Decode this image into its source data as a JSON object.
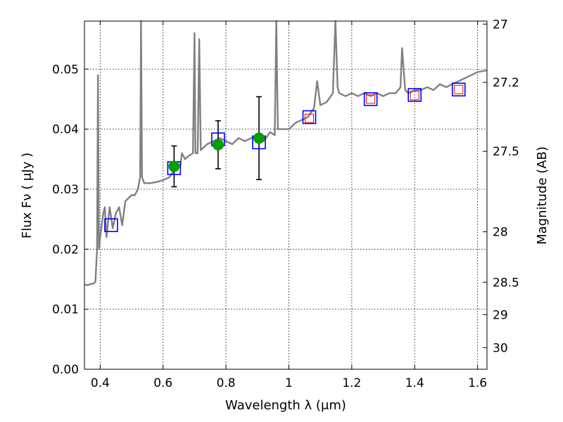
{
  "chart_data": {
    "type": "line",
    "title": "",
    "xlabel": "Wavelength  λ (μm)",
    "ylabel": "Flux  Fν  ( μJy )",
    "y2label": "Magnitude (AB)",
    "xlim": [
      0.35,
      1.63
    ],
    "ylim": [
      0.0,
      0.058
    ],
    "grid": true,
    "x_ticks": [
      0.4,
      0.6,
      0.8,
      1.0,
      1.2,
      1.4,
      1.6
    ],
    "x_tick_labels": [
      "0.4",
      "0.6",
      "0.8",
      "1",
      "1.2",
      "1.4",
      "1.6"
    ],
    "y_ticks": [
      0.0,
      0.01,
      0.02,
      0.03,
      0.04,
      0.05
    ],
    "y_tick_labels": [
      "0.00",
      "0.01",
      "0.02",
      "0.03",
      "0.04",
      "0.05"
    ],
    "y2_ticks": [
      {
        "label": "27",
        "flux": 0.0575
      },
      {
        "label": "27.2",
        "flux": 0.0478
      },
      {
        "label": "27.5",
        "flux": 0.0363
      },
      {
        "label": "28",
        "flux": 0.0229
      },
      {
        "label": "28.5",
        "flux": 0.0145
      },
      {
        "label": "29",
        "flux": 0.0091
      },
      {
        "label": "30",
        "flux": 0.0036
      }
    ],
    "colors": {
      "spectrum": "#808080",
      "model_box": "#0000ff",
      "observed": "#00a000",
      "inner_box": "#ff0000",
      "errorbar": "#000000"
    },
    "series": [
      {
        "style": "spectrum",
        "points": [
          [
            0.35,
            0.0141
          ],
          [
            0.36,
            0.014
          ],
          [
            0.37,
            0.0142
          ],
          [
            0.38,
            0.0143
          ],
          [
            0.385,
            0.0146
          ],
          [
            0.39,
            0.02
          ],
          [
            0.393,
            0.049
          ],
          [
            0.396,
            0.02
          ],
          [
            0.4,
            0.022
          ],
          [
            0.41,
            0.026
          ],
          [
            0.415,
            0.027
          ],
          [
            0.42,
            0.022
          ],
          [
            0.43,
            0.027
          ],
          [
            0.44,
            0.0235
          ],
          [
            0.45,
            0.026
          ],
          [
            0.46,
            0.027
          ],
          [
            0.47,
            0.024
          ],
          [
            0.48,
            0.028
          ],
          [
            0.5,
            0.029
          ],
          [
            0.51,
            0.029
          ],
          [
            0.52,
            0.03
          ],
          [
            0.527,
            0.032
          ],
          [
            0.53,
            0.058
          ],
          [
            0.533,
            0.032
          ],
          [
            0.54,
            0.031
          ],
          [
            0.56,
            0.031
          ],
          [
            0.58,
            0.0312
          ],
          [
            0.6,
            0.0315
          ],
          [
            0.62,
            0.032
          ],
          [
            0.64,
            0.0335
          ],
          [
            0.655,
            0.034
          ],
          [
            0.66,
            0.036
          ],
          [
            0.67,
            0.035
          ],
          [
            0.68,
            0.0355
          ],
          [
            0.695,
            0.036
          ],
          [
            0.7,
            0.056
          ],
          [
            0.703,
            0.036
          ],
          [
            0.71,
            0.036
          ],
          [
            0.715,
            0.055
          ],
          [
            0.72,
            0.0365
          ],
          [
            0.74,
            0.0375
          ],
          [
            0.76,
            0.038
          ],
          [
            0.78,
            0.0385
          ],
          [
            0.8,
            0.038
          ],
          [
            0.82,
            0.0375
          ],
          [
            0.84,
            0.0385
          ],
          [
            0.86,
            0.038
          ],
          [
            0.88,
            0.0385
          ],
          [
            0.9,
            0.039
          ],
          [
            0.92,
            0.038
          ],
          [
            0.94,
            0.0395
          ],
          [
            0.955,
            0.039
          ],
          [
            0.96,
            0.058
          ],
          [
            0.965,
            0.04
          ],
          [
            0.98,
            0.04
          ],
          [
            1.0,
            0.04
          ],
          [
            1.02,
            0.041
          ],
          [
            1.04,
            0.0415
          ],
          [
            1.06,
            0.042
          ],
          [
            1.08,
            0.0435
          ],
          [
            1.09,
            0.048
          ],
          [
            1.1,
            0.044
          ],
          [
            1.12,
            0.0445
          ],
          [
            1.14,
            0.046
          ],
          [
            1.148,
            0.058
          ],
          [
            1.155,
            0.047
          ],
          [
            1.16,
            0.046
          ],
          [
            1.18,
            0.0455
          ],
          [
            1.2,
            0.046
          ],
          [
            1.22,
            0.0455
          ],
          [
            1.24,
            0.046
          ],
          [
            1.26,
            0.0455
          ],
          [
            1.28,
            0.046
          ],
          [
            1.3,
            0.0455
          ],
          [
            1.32,
            0.046
          ],
          [
            1.34,
            0.046
          ],
          [
            1.355,
            0.047
          ],
          [
            1.36,
            0.0535
          ],
          [
            1.37,
            0.0465
          ],
          [
            1.38,
            0.046
          ],
          [
            1.4,
            0.0465
          ],
          [
            1.42,
            0.0465
          ],
          [
            1.44,
            0.047
          ],
          [
            1.46,
            0.0465
          ],
          [
            1.48,
            0.0475
          ],
          [
            1.5,
            0.047
          ],
          [
            1.52,
            0.0475
          ],
          [
            1.54,
            0.048
          ],
          [
            1.56,
            0.0485
          ],
          [
            1.58,
            0.049
          ],
          [
            1.6,
            0.0495
          ],
          [
            1.63,
            0.0498
          ]
        ]
      },
      {
        "style": "model_boxes",
        "points": [
          [
            0.435,
            0.024
          ],
          [
            0.635,
            0.0335
          ],
          [
            0.775,
            0.0383
          ],
          [
            0.905,
            0.0378
          ],
          [
            1.065,
            0.042
          ],
          [
            1.26,
            0.045
          ],
          [
            1.4,
            0.0457
          ],
          [
            1.54,
            0.0466
          ]
        ]
      },
      {
        "style": "observed_points",
        "points": [
          [
            0.635,
            0.0338
          ],
          [
            0.775,
            0.0374
          ],
          [
            0.905,
            0.0385
          ]
        ],
        "yerr": [
          0.0034,
          0.004,
          0.0069
        ]
      },
      {
        "style": "inner_red_boxes",
        "points": [
          [
            1.065,
            0.0418
          ],
          [
            1.26,
            0.045
          ],
          [
            1.4,
            0.0456
          ],
          [
            1.54,
            0.0466
          ]
        ]
      }
    ]
  }
}
